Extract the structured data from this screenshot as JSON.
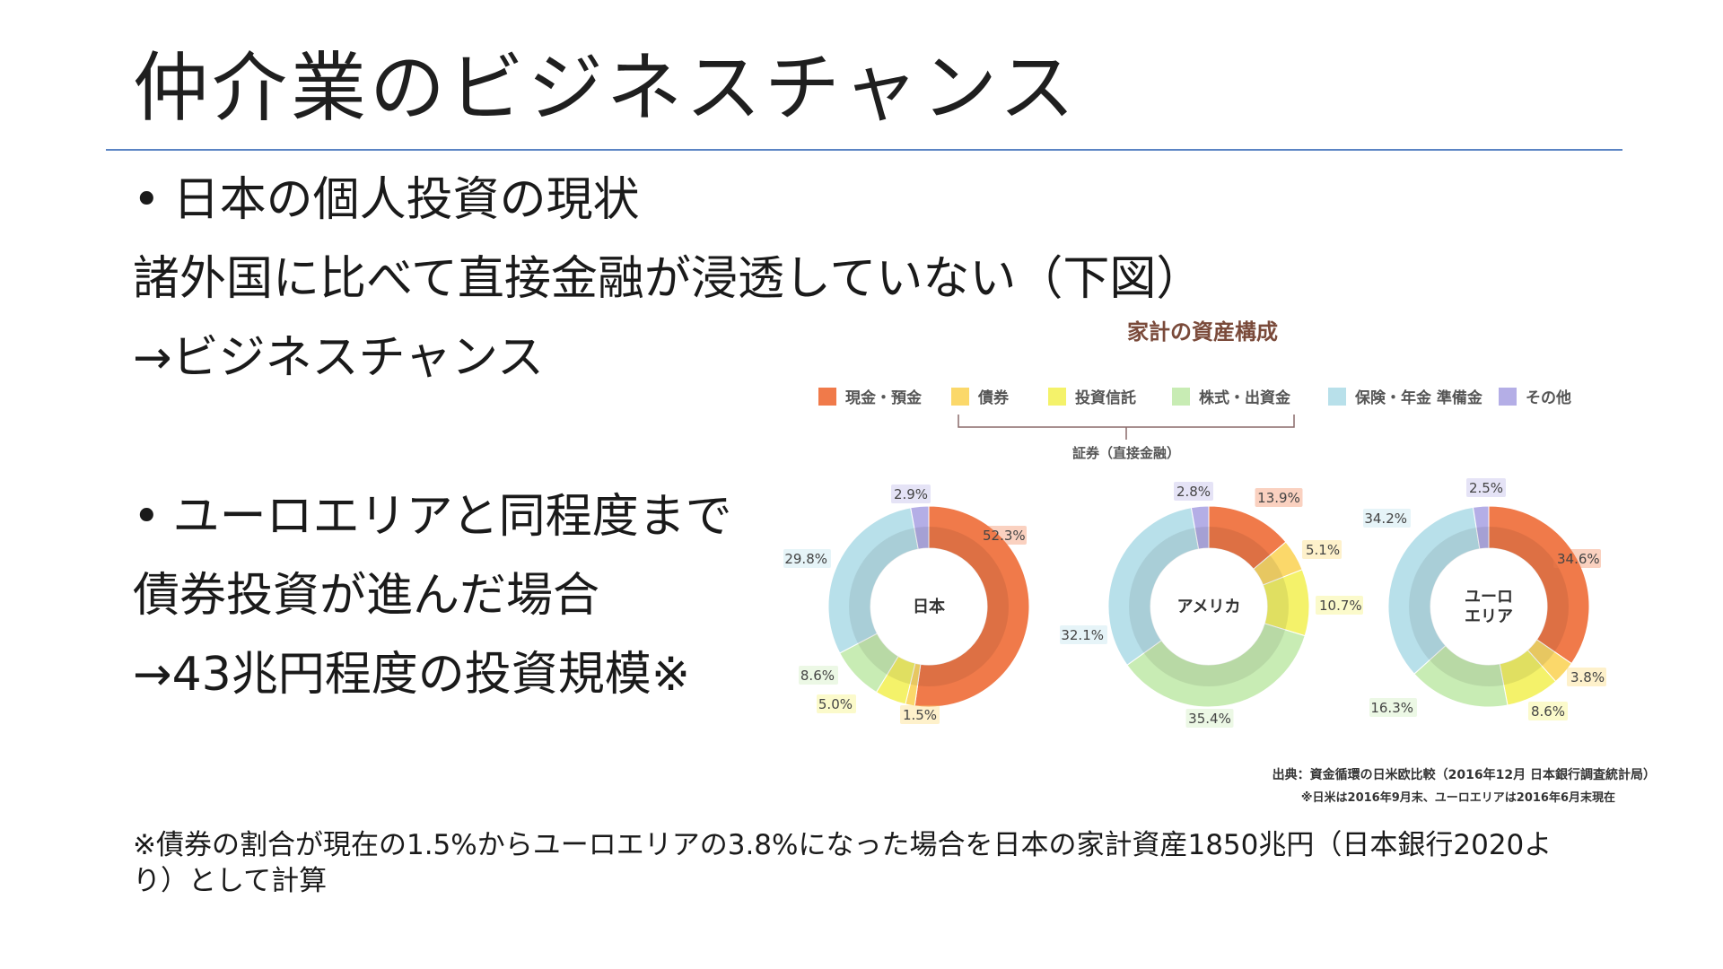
{
  "slide": {
    "title": "仲介業のビジネスチャンス",
    "bullet1": "日本の個人投資の現状",
    "line2": "諸外国に比べて直接金融が浸透していない（下図）",
    "line3": "→ビジネスチャンス",
    "bullet2": "ユーロエリアと同程度まで",
    "line5": "債券投資が進んだ場合",
    "line6": "→43兆円程度の投資規模※",
    "footnote": "※債券の割合が現在の1.5%からユーロエリアの3.8%になった場合を日本の家計資産1850兆円（日本銀行2020より）として計算"
  },
  "chart_data": {
    "type": "pie",
    "title": "家計の資産構成",
    "categories": [
      "現金・預金",
      "債券",
      "投資信託",
      "株式・出資金",
      "保険・年金 準備金",
      "その他"
    ],
    "colors": [
      "#f07a4a",
      "#fbd86a",
      "#f4f26a",
      "#c8ecb4",
      "#b8e0ea",
      "#b4aee6"
    ],
    "bracket_label": "証券（直接金融）",
    "series": [
      {
        "name": "日本",
        "values": [
          52.3,
          1.5,
          5.0,
          8.6,
          29.8,
          2.9
        ],
        "labels": [
          "52.3%",
          "1.5%",
          "5.0%",
          "8.6%",
          "29.8%",
          "2.9%"
        ]
      },
      {
        "name": "アメリカ",
        "values": [
          13.9,
          5.1,
          10.7,
          35.4,
          32.1,
          2.8
        ],
        "labels": [
          "13.9%",
          "5.1%",
          "10.7%",
          "35.4%",
          "32.1%",
          "2.8%"
        ]
      },
      {
        "name": "ユーロ\nエリア",
        "values": [
          34.6,
          3.8,
          8.6,
          16.3,
          34.2,
          2.5
        ],
        "labels": [
          "34.6%",
          "3.8%",
          "8.6%",
          "16.3%",
          "34.2%",
          "2.5%"
        ]
      }
    ],
    "source": "出典：資金循環の日米欧比較（2016年12月 日本銀行調査統計局）",
    "note": "※日米は2016年9月末、ユーロエリアは2016年6月末現在"
  }
}
